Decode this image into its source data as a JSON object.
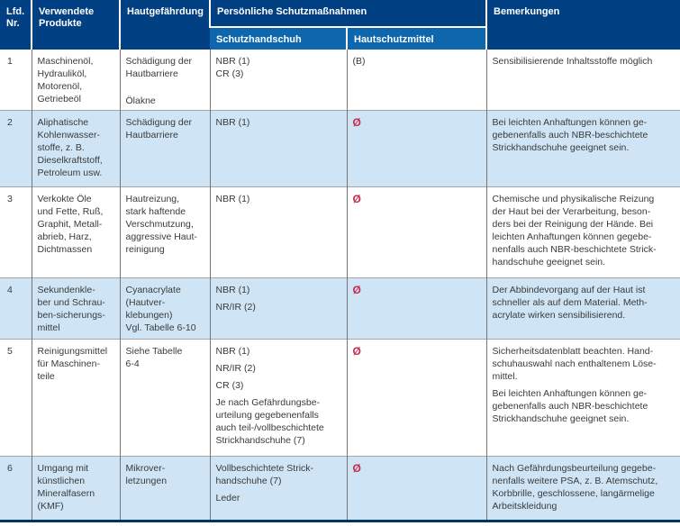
{
  "colors": {
    "header_bg": "#004083",
    "subheader_bg": "#0e66ad",
    "row_alt_bg": "#cfe5f5",
    "na_symbol_red": "#c62a50",
    "bottom_border": "#00365f"
  },
  "table": {
    "header": {
      "nr": "Lfd.\nNr.",
      "produkte": "Verwendete\nProdukte",
      "gefaehrdung": "Hautgefährdung",
      "schutzmassnahmen": "Persönliche Schutzmaßnahmen",
      "handschuh": "Schutzhandschuh",
      "hautschutz": "Hautschutzmittel",
      "bemerkungen": "Bemerkungen"
    },
    "na_symbol": "Ø",
    "rows": [
      {
        "nr": "1",
        "produkte": "Maschinenöl,\nHydrauliköl,\nMotorenöl,\nGetriebeöl",
        "gefaehrdung": [
          "Schädigung der\nHautbarriere",
          "Ölakne"
        ],
        "handschuh": "NBR (1)\nCR (3)",
        "hautschutz": "(B)",
        "bemerkungen": "Sensibilisierende Inhaltsstoffe möglich"
      },
      {
        "nr": "2",
        "produkte": "Aliphatische\nKohlenwasser-\nstoffe, z. B.\nDieselkraftstoff,\nPetroleum usw.",
        "gefaehrdung": "Schädigung der\nHautbarriere",
        "handschuh": "NBR (1)",
        "hautschutz": "Ø",
        "bemerkungen": "Bei leichten Anhaftungen können ge-\ngebenenfalls auch NBR-beschichtete\nStrickhandschuhe geeignet sein."
      },
      {
        "nr": "3",
        "produkte": "Verkokte Öle\nund Fette, Ruß,\nGraphit, Metall-\nabrieb, Harz,\nDichtmassen",
        "gefaehrdung": "Hautreizung,\nstark haftende\nVerschmutzung,\naggressive Haut-\nreinigung",
        "handschuh": "NBR (1)",
        "hautschutz": "Ø",
        "bemerkungen": "Chemische und physikalische Reizung\nder Haut bei der Verarbeitung, beson-\nders bei der Reinigung der Hände. Bei\nleichten Anhaftungen können gegebe-\nnenfalls auch NBR-beschichtete Strick-\nhandschuhe geeignet sein."
      },
      {
        "nr": "4",
        "produkte": "Sekundenkle-\nber und Schrau-\nben-sicherungs-\nmittel",
        "gefaehrdung": "Cyanacrylate\n(Hautver-\nklebungen)\nVgl. Tabelle 6-10",
        "handschuh": [
          "NBR (1)",
          "NR/IR (2)"
        ],
        "hautschutz": "Ø",
        "bemerkungen": "Der Abbindevorgang auf der Haut ist\nschneller als auf dem Material. Meth-\nacrylate wirken sensibilisierend."
      },
      {
        "nr": "5",
        "produkte": "Reinigungsmittel\nfür Maschinen-\nteile",
        "gefaehrdung": "Siehe Tabelle\n6-4",
        "handschuh": [
          "NBR (1)",
          "NR/IR (2)",
          "CR (3)",
          "Je nach Gefährdungsbe-\nurteilung gegebenenfalls\nauch teil-/vollbeschichtete\nStrickhandschuhe (7)"
        ],
        "hautschutz": "Ø",
        "bemerkungen": [
          "Sicherheitsdatenblatt beachten. Hand-\nschuhauswahl nach enthaltenem Löse-\nmittel.",
          "Bei leichten Anhaftungen können ge-\ngebenenfalls auch NBR-beschichtete\nStrickhandschuhe geeignet sein."
        ]
      },
      {
        "nr": "6",
        "produkte": "Umgang mit\nkünstlichen\nMineralfasern\n(KMF)",
        "gefaehrdung": "Mikrover-\nletzungen",
        "handschuh": [
          "Vollbeschichtete Strick-\nhandschuhe (7)",
          "Leder"
        ],
        "hautschutz": "Ø",
        "bemerkungen": "Nach Gefährdungsbeurteilung gegebe-\nnenfalls weitere PSA, z. B. Atemschutz,\nKorbbrille, geschlossene, langärmelige\nArbeitskleidung"
      }
    ]
  }
}
